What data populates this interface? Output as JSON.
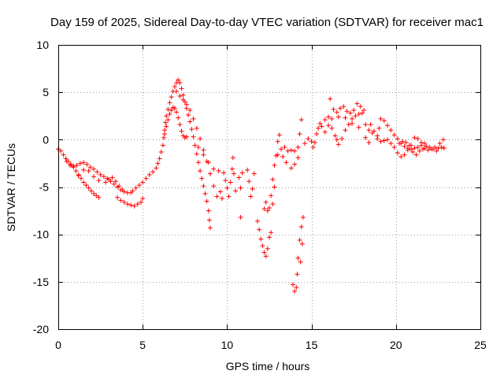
{
  "chart_data": {
    "type": "scatter",
    "title": "Day 159 of 2025, Sidereal Day-to-day VTEC variation (SDTVAR) for receiver mac1",
    "xlabel": "GPS time / hours",
    "ylabel": "SDTVAR / TECUs",
    "xlim": [
      0,
      25
    ],
    "ylim": [
      -20,
      10
    ],
    "xticks": [
      0,
      5,
      10,
      15,
      20,
      25
    ],
    "yticks": [
      -20,
      -15,
      -10,
      -5,
      0,
      5,
      10
    ],
    "grid": true,
    "marker": "+",
    "color": "#ff0000",
    "series": [
      {
        "name": "SDTVAR",
        "points": [
          [
            0.0,
            -1.0
          ],
          [
            0.15,
            -1.2
          ],
          [
            0.3,
            -1.6
          ],
          [
            0.45,
            -2.0
          ],
          [
            0.6,
            -2.3
          ],
          [
            0.75,
            -2.6
          ],
          [
            0.9,
            -2.9
          ],
          [
            1.05,
            -3.3
          ],
          [
            1.2,
            -3.7
          ],
          [
            1.35,
            -4.1
          ],
          [
            1.5,
            -4.5
          ],
          [
            1.65,
            -4.8
          ],
          [
            1.8,
            -5.1
          ],
          [
            1.95,
            -5.4
          ],
          [
            2.1,
            -5.7
          ],
          [
            2.25,
            -5.9
          ],
          [
            2.4,
            -6.1
          ],
          [
            0.5,
            -2.3
          ],
          [
            0.7,
            -2.7
          ],
          [
            0.9,
            -2.8
          ],
          [
            1.1,
            -2.7
          ],
          [
            1.3,
            -2.5
          ],
          [
            1.5,
            -2.4
          ],
          [
            1.7,
            -2.6
          ],
          [
            1.9,
            -2.9
          ],
          [
            2.1,
            -3.1
          ],
          [
            2.3,
            -3.4
          ],
          [
            2.5,
            -3.7
          ],
          [
            2.7,
            -3.9
          ],
          [
            2.9,
            -4.1
          ],
          [
            3.1,
            -4.4
          ],
          [
            3.3,
            -4.7
          ],
          [
            3.5,
            -5.0
          ],
          [
            3.7,
            -5.3
          ],
          [
            3.9,
            -5.5
          ],
          [
            4.1,
            -5.6
          ],
          [
            4.3,
            -5.6
          ],
          [
            1.2,
            -3.8
          ],
          [
            1.5,
            -3.2
          ],
          [
            1.8,
            -3.3
          ],
          [
            2.1,
            -3.9
          ],
          [
            2.4,
            -4.3
          ],
          [
            2.8,
            -4.5
          ],
          [
            3.0,
            -4.2
          ],
          [
            3.2,
            -4.0
          ],
          [
            3.4,
            -4.4
          ],
          [
            3.6,
            -4.9
          ],
          [
            3.8,
            -5.3
          ],
          [
            3.5,
            -6.1
          ],
          [
            3.7,
            -6.4
          ],
          [
            3.9,
            -6.6
          ],
          [
            4.1,
            -6.8
          ],
          [
            4.3,
            -6.9
          ],
          [
            4.5,
            -7.0
          ],
          [
            4.7,
            -6.8
          ],
          [
            4.9,
            -6.6
          ],
          [
            5.0,
            -6.2
          ],
          [
            4.4,
            -5.4
          ],
          [
            4.6,
            -5.1
          ],
          [
            4.8,
            -4.8
          ],
          [
            5.0,
            -4.5
          ],
          [
            5.2,
            -4.1
          ],
          [
            5.4,
            -3.7
          ],
          [
            5.6,
            -3.4
          ],
          [
            5.8,
            -3.0
          ],
          [
            5.9,
            -2.5
          ],
          [
            6.0,
            -2.0
          ],
          [
            6.1,
            -1.3
          ],
          [
            6.2,
            -0.6
          ],
          [
            6.25,
            0.2
          ],
          [
            6.3,
            1.0
          ],
          [
            6.35,
            1.8
          ],
          [
            6.4,
            2.5
          ],
          [
            6.5,
            3.2
          ],
          [
            6.6,
            3.9
          ],
          [
            6.7,
            4.5
          ],
          [
            6.8,
            5.1
          ],
          [
            6.9,
            5.6
          ],
          [
            7.0,
            6.0
          ],
          [
            7.1,
            6.3
          ],
          [
            7.2,
            6.0
          ],
          [
            7.3,
            5.4
          ],
          [
            7.4,
            4.7
          ],
          [
            7.5,
            4.0
          ],
          [
            7.6,
            3.3
          ],
          [
            7.7,
            2.6
          ],
          [
            7.8,
            1.9
          ],
          [
            7.9,
            1.1
          ],
          [
            8.0,
            0.3
          ],
          [
            8.1,
            -0.6
          ],
          [
            8.2,
            -1.5
          ],
          [
            8.3,
            -2.4
          ],
          [
            8.4,
            -3.3
          ],
          [
            8.5,
            -4.1
          ],
          [
            8.6,
            -4.9
          ],
          [
            8.7,
            -5.7
          ],
          [
            8.8,
            -6.5
          ],
          [
            8.9,
            -7.5
          ],
          [
            8.95,
            -8.5
          ],
          [
            9.0,
            -9.3
          ],
          [
            6.3,
            0.6
          ],
          [
            6.4,
            1.4
          ],
          [
            6.5,
            2.1
          ],
          [
            6.6,
            2.7
          ],
          [
            6.7,
            3.1
          ],
          [
            6.8,
            3.4
          ],
          [
            6.9,
            3.3
          ],
          [
            7.0,
            2.9
          ],
          [
            7.1,
            2.3
          ],
          [
            7.2,
            1.6
          ],
          [
            7.3,
            0.9
          ],
          [
            7.4,
            0.4
          ],
          [
            7.5,
            0.2
          ],
          [
            7.6,
            0.3
          ],
          [
            7.0,
            5.1
          ],
          [
            7.2,
            4.6
          ],
          [
            7.4,
            4.2
          ],
          [
            7.6,
            3.7
          ],
          [
            7.8,
            3.1
          ],
          [
            8.0,
            2.2
          ],
          [
            8.2,
            1.2
          ],
          [
            8.4,
            0.1
          ],
          [
            8.6,
            -1.1
          ],
          [
            8.8,
            -2.3
          ],
          [
            9.0,
            -3.6
          ],
          [
            9.2,
            -4.9
          ],
          [
            9.4,
            -6.0
          ],
          [
            8.3,
            -0.8
          ],
          [
            8.6,
            -1.6
          ],
          [
            8.9,
            -2.4
          ],
          [
            9.2,
            -3.1
          ],
          [
            9.5,
            -3.3
          ],
          [
            9.8,
            -3.5
          ],
          [
            9.9,
            -4.3
          ],
          [
            10.0,
            -5.1
          ],
          [
            10.1,
            -6.0
          ],
          [
            10.2,
            -4.5
          ],
          [
            10.3,
            -3.1
          ],
          [
            10.35,
            -1.9
          ],
          [
            10.4,
            -3.6
          ],
          [
            10.5,
            -5.4
          ],
          [
            9.6,
            -5.5
          ],
          [
            9.7,
            -6.2
          ],
          [
            10.7,
            -4.0
          ],
          [
            10.8,
            -5.1
          ],
          [
            10.9,
            -3.5
          ],
          [
            11.2,
            -3.2
          ],
          [
            11.3,
            -4.4
          ],
          [
            11.4,
            -6.0
          ],
          [
            11.5,
            -5.2
          ],
          [
            11.6,
            -3.6
          ],
          [
            10.8,
            -8.2
          ],
          [
            11.8,
            -8.6
          ],
          [
            11.9,
            -9.5
          ],
          [
            12.0,
            -10.5
          ],
          [
            12.1,
            -11.2
          ],
          [
            12.2,
            -11.9
          ],
          [
            12.3,
            -12.3
          ],
          [
            12.4,
            -11.5
          ],
          [
            12.5,
            -10.3
          ],
          [
            12.6,
            -9.8
          ],
          [
            12.5,
            -7.2
          ],
          [
            12.6,
            -5.9
          ],
          [
            12.7,
            -4.2
          ],
          [
            12.8,
            -2.7
          ],
          [
            12.9,
            -1.7
          ],
          [
            12.2,
            -7.3
          ],
          [
            12.3,
            -6.6
          ],
          [
            12.4,
            -7.5
          ],
          [
            12.7,
            -6.8
          ],
          [
            12.8,
            -5.0
          ],
          [
            13.0,
            -1.6
          ],
          [
            13.2,
            -1.0
          ],
          [
            13.4,
            -0.8
          ],
          [
            13.6,
            -1.2
          ],
          [
            13.8,
            -1.1
          ],
          [
            14.0,
            -1.2
          ],
          [
            14.2,
            -0.8
          ],
          [
            14.3,
            0.6
          ],
          [
            14.4,
            2.1
          ],
          [
            14.2,
            -1.9
          ],
          [
            14.0,
            -2.6
          ],
          [
            13.8,
            -3.0
          ],
          [
            13.5,
            -2.4
          ],
          [
            13.3,
            -1.8
          ],
          [
            13.0,
            -0.2
          ],
          [
            13.1,
            0.5
          ],
          [
            13.9,
            -15.3
          ],
          [
            14.0,
            -16.0
          ],
          [
            14.1,
            -15.6
          ],
          [
            14.15,
            -14.2
          ],
          [
            14.2,
            -12.5
          ],
          [
            14.3,
            -10.6
          ],
          [
            14.4,
            -9.2
          ],
          [
            14.5,
            -8.2
          ],
          [
            14.35,
            -12.9
          ],
          [
            14.45,
            -11.0
          ],
          [
            14.6,
            -0.4
          ],
          [
            14.8,
            0.1
          ],
          [
            15.0,
            -0.2
          ],
          [
            15.1,
            -0.8
          ],
          [
            15.2,
            -0.3
          ],
          [
            15.3,
            0.6
          ],
          [
            15.4,
            1.2
          ],
          [
            15.5,
            1.7
          ],
          [
            15.6,
            1.4
          ],
          [
            15.8,
            2.1
          ],
          [
            16.0,
            2.4
          ],
          [
            16.2,
            1.2
          ],
          [
            16.4,
            0.4
          ],
          [
            16.5,
            0.0
          ],
          [
            16.6,
            -0.5
          ],
          [
            16.8,
            0.1
          ],
          [
            17.0,
            1.0
          ],
          [
            17.2,
            1.6
          ],
          [
            17.4,
            2.2
          ],
          [
            17.6,
            2.5
          ],
          [
            17.8,
            2.7
          ],
          [
            18.0,
            2.8
          ],
          [
            18.2,
            1.6
          ],
          [
            18.4,
            1.0
          ],
          [
            18.6,
            0.7
          ],
          [
            16.1,
            4.3
          ],
          [
            16.3,
            3.2
          ],
          [
            16.5,
            2.9
          ],
          [
            16.7,
            3.3
          ],
          [
            16.9,
            3.5
          ],
          [
            17.1,
            3.0
          ],
          [
            17.3,
            2.8
          ],
          [
            17.5,
            3.1
          ],
          [
            17.7,
            3.8
          ],
          [
            17.9,
            3.5
          ],
          [
            18.1,
            3.1
          ],
          [
            15.8,
            0.8
          ],
          [
            16.0,
            1.5
          ],
          [
            16.2,
            2.2
          ],
          [
            16.6,
            2.4
          ],
          [
            17.0,
            2.3
          ],
          [
            17.4,
            1.7
          ],
          [
            17.8,
            1.3
          ],
          [
            18.2,
            0.2
          ],
          [
            18.4,
            -0.3
          ],
          [
            18.5,
            1.6
          ],
          [
            18.7,
            0.9
          ],
          [
            18.9,
            0.4
          ],
          [
            19.0,
            1.2
          ],
          [
            19.1,
            2.2
          ],
          [
            19.3,
            2.0
          ],
          [
            19.5,
            1.5
          ],
          [
            19.7,
            1.0
          ],
          [
            19.9,
            0.5
          ],
          [
            20.1,
            0.1
          ],
          [
            20.3,
            -0.4
          ],
          [
            20.5,
            -0.7
          ],
          [
            20.7,
            -0.9
          ],
          [
            20.9,
            -1.0
          ],
          [
            21.1,
            -0.9
          ],
          [
            21.3,
            -0.8
          ],
          [
            21.5,
            -0.6
          ],
          [
            21.7,
            -0.4
          ],
          [
            18.9,
            0.1
          ],
          [
            19.1,
            -0.2
          ],
          [
            19.3,
            -0.1
          ],
          [
            19.5,
            0.0
          ],
          [
            19.7,
            -0.4
          ],
          [
            19.9,
            -0.8
          ],
          [
            20.1,
            -1.4
          ],
          [
            20.3,
            -1.8
          ],
          [
            20.5,
            -1.6
          ],
          [
            20.7,
            -1.1
          ],
          [
            20.9,
            -0.6
          ],
          [
            21.1,
            0.2
          ],
          [
            21.3,
            0.1
          ],
          [
            21.5,
            -0.3
          ],
          [
            21.7,
            -0.9
          ],
          [
            21.9,
            -1.1
          ],
          [
            22.1,
            -1.0
          ],
          [
            22.3,
            -0.8
          ],
          [
            22.5,
            -0.9
          ],
          [
            22.7,
            -0.8
          ],
          [
            22.85,
            -0.9
          ],
          [
            20.2,
            -0.4
          ],
          [
            20.4,
            -0.2
          ],
          [
            20.6,
            -0.3
          ],
          [
            20.8,
            -0.6
          ],
          [
            21.0,
            -1.3
          ],
          [
            21.2,
            -1.6
          ],
          [
            21.4,
            -1.2
          ],
          [
            21.6,
            -1.0
          ],
          [
            21.8,
            -0.7
          ],
          [
            22.0,
            -0.8
          ],
          [
            22.2,
            -1.0
          ],
          [
            22.4,
            -1.2
          ],
          [
            22.6,
            -0.4
          ],
          [
            22.8,
            0.0
          ]
        ]
      }
    ]
  }
}
